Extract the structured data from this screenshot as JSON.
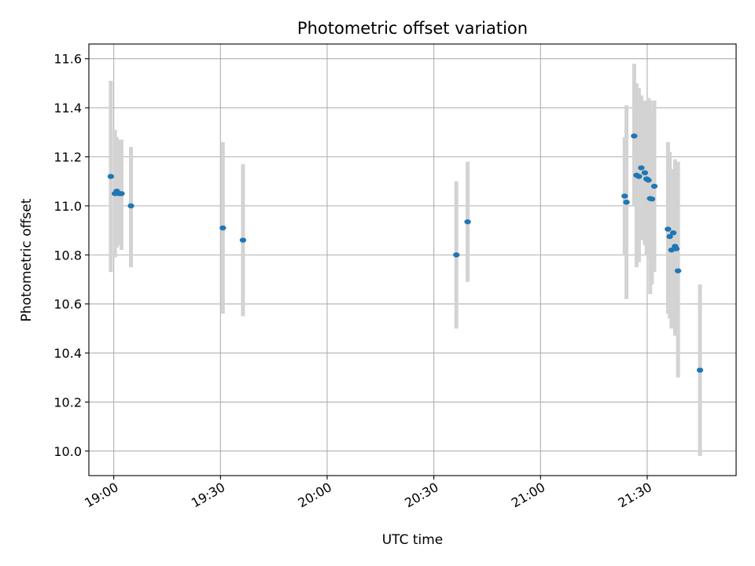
{
  "chart_data": {
    "type": "scatter",
    "title": "Photometric offset variation",
    "xlabel": "UTC time",
    "ylabel": "Photometric offset",
    "x_axis_kind": "time",
    "xlim": [
      "18:53:00",
      "21:55:00"
    ],
    "ylim": [
      9.9,
      11.66
    ],
    "x_ticks": [
      "19:00",
      "19:30",
      "20:00",
      "20:30",
      "21:00",
      "21:30"
    ],
    "y_ticks": [
      "10.0",
      "10.2",
      "10.4",
      "10.6",
      "10.8",
      "11.0",
      "11.2",
      "11.4",
      "11.6"
    ],
    "grid": true,
    "point_color": "#1f77b4",
    "errorbar_color": "#d3d3d3",
    "points": [
      {
        "x": "18:59:10",
        "y": 11.12,
        "lo": 10.73,
        "hi": 11.51
      },
      {
        "x": "19:00:20",
        "y": 11.05,
        "lo": 10.79,
        "hi": 11.31
      },
      {
        "x": "19:00:50",
        "y": 11.06,
        "lo": 10.83,
        "hi": 11.28
      },
      {
        "x": "19:01:30",
        "y": 11.05,
        "lo": 10.84,
        "hi": 11.27
      },
      {
        "x": "19:02:10",
        "y": 11.05,
        "lo": 10.82,
        "hi": 11.27
      },
      {
        "x": "19:04:50",
        "y": 11.0,
        "lo": 10.75,
        "hi": 11.24
      },
      {
        "x": "19:30:40",
        "y": 10.91,
        "lo": 10.56,
        "hi": 11.26
      },
      {
        "x": "19:36:20",
        "y": 10.86,
        "lo": 10.55,
        "hi": 11.17
      },
      {
        "x": "20:36:20",
        "y": 10.8,
        "lo": 10.5,
        "hi": 11.1
      },
      {
        "x": "20:39:30",
        "y": 10.935,
        "lo": 10.69,
        "hi": 11.18
      },
      {
        "x": "21:23:40",
        "y": 11.04,
        "lo": 10.8,
        "hi": 11.28
      },
      {
        "x": "21:24:10",
        "y": 11.015,
        "lo": 10.62,
        "hi": 11.41
      },
      {
        "x": "21:26:20",
        "y": 11.285,
        "lo": 11.0,
        "hi": 11.58
      },
      {
        "x": "21:27:00",
        "y": 11.125,
        "lo": 10.75,
        "hi": 11.5
      },
      {
        "x": "21:27:40",
        "y": 11.12,
        "lo": 10.77,
        "hi": 11.48
      },
      {
        "x": "21:28:20",
        "y": 11.155,
        "lo": 10.86,
        "hi": 11.45
      },
      {
        "x": "21:29:20",
        "y": 11.135,
        "lo": 10.84,
        "hi": 11.43
      },
      {
        "x": "21:29:50",
        "y": 11.11,
        "lo": 10.8,
        "hi": 11.42
      },
      {
        "x": "21:30:20",
        "y": 11.105,
        "lo": 10.78,
        "hi": 11.44
      },
      {
        "x": "21:30:50",
        "y": 11.03,
        "lo": 10.64,
        "hi": 11.43
      },
      {
        "x": "21:31:20",
        "y": 11.028,
        "lo": 10.68,
        "hi": 11.38
      },
      {
        "x": "21:32:00",
        "y": 11.08,
        "lo": 10.73,
        "hi": 11.43
      },
      {
        "x": "21:35:50",
        "y": 10.905,
        "lo": 10.56,
        "hi": 11.26
      },
      {
        "x": "21:36:20",
        "y": 10.875,
        "lo": 10.54,
        "hi": 11.22
      },
      {
        "x": "21:36:50",
        "y": 10.82,
        "lo": 10.5,
        "hi": 11.14
      },
      {
        "x": "21:37:20",
        "y": 10.89,
        "lo": 10.52,
        "hi": 11.15
      },
      {
        "x": "21:37:50",
        "y": 10.835,
        "lo": 10.47,
        "hi": 11.19
      },
      {
        "x": "21:38:10",
        "y": 10.825,
        "lo": 10.48,
        "hi": 11.17
      },
      {
        "x": "21:38:40",
        "y": 10.735,
        "lo": 10.3,
        "hi": 11.18
      },
      {
        "x": "21:44:50",
        "y": 10.33,
        "lo": 9.98,
        "hi": 10.68
      }
    ]
  }
}
